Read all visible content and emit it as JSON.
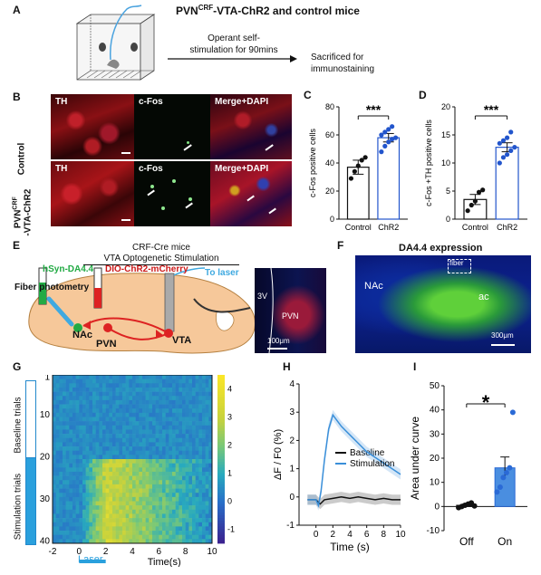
{
  "panelA": {
    "letter": "A",
    "title_main": "PVN",
    "title_sup": "CRF",
    "title_rest": "-VTA-ChR2  and control mice",
    "arrow_text_1": "Operant self-",
    "arrow_text_2": "stimulation for 90mins",
    "result_text_1": "Sacrificed for",
    "result_text_2": "immunostaining"
  },
  "panelB": {
    "letter": "B",
    "col_labels": [
      "TH",
      "c-Fos",
      "Merge+DAPI"
    ],
    "row1_label": "Control",
    "row2_label_main": "PVN",
    "row2_label_sup": "CRF",
    "row2_label_rest": "-VTA-ChR2"
  },
  "panelC": {
    "letter": "C",
    "sig": "***",
    "chart_data": {
      "type": "bar",
      "categories": [
        "Control",
        "ChR2"
      ],
      "values": [
        37,
        58
      ],
      "errors": [
        5,
        3
      ],
      "points": [
        [
          29,
          34,
          38,
          42,
          44
        ],
        [
          48,
          52,
          55,
          57,
          58,
          60,
          62,
          64,
          66
        ]
      ],
      "ylabel": "c-Fos positive cells",
      "ylim": [
        0,
        80
      ],
      "yticks": [
        0,
        20,
        40,
        60,
        80
      ],
      "colors": [
        "#111111",
        "#2255cc"
      ]
    }
  },
  "panelD": {
    "letter": "D",
    "sig": "***",
    "chart_data": {
      "type": "bar",
      "categories": [
        "Control",
        "ChR2"
      ],
      "values": [
        3.5,
        12.8
      ],
      "errors": [
        0.9,
        0.8
      ],
      "points": [
        [
          1.5,
          2.5,
          3.2,
          4.8,
          5.2
        ],
        [
          10,
          11,
          11.5,
          12.2,
          12.8,
          13.5,
          14,
          14.5,
          15.5
        ]
      ],
      "ylabel": "c-Fos +TH positive cells",
      "ylim": [
        0,
        20
      ],
      "yticks": [
        0,
        5,
        10,
        15,
        20
      ],
      "colors": [
        "#111111",
        "#2255cc"
      ]
    }
  },
  "panelE": {
    "letter": "E",
    "title_1": "CRF-Cre mice",
    "title_2": "VTA Optogenetic Stimulation",
    "hsyn": "hSyn-DA4.4",
    "dio": "DIO-ChR2-mCherry",
    "fiber": "Fiber photometry",
    "laser": "To laser",
    "nac": "NAc",
    "pvn": "PVN",
    "vta": "VTA",
    "inset_3v": "3V",
    "inset_pvn": "PVN",
    "inset_scale": "100μm"
  },
  "panelF": {
    "letter": "F",
    "title": "DA4.4 expression",
    "fiber": "fiber",
    "nac": "NAc",
    "ac": "ac",
    "scale": "300μm"
  },
  "panelG": {
    "letter": "G",
    "baseline_label": "Baseline trials",
    "stim_label": "Stimulation trials",
    "laser_label": "Laser",
    "x_label": "Time(s)",
    "x_ticks": [
      "-2",
      "0",
      "2",
      "4",
      "6",
      "8",
      "10"
    ],
    "y_ticks": [
      "1",
      "10",
      "20",
      "30",
      "40"
    ],
    "cbar_ticks": [
      "4",
      "3",
      "2",
      "1",
      "0",
      "-1"
    ]
  },
  "panelH": {
    "letter": "H",
    "chart_data": {
      "type": "line",
      "xlabel": "Time (s)",
      "ylabel": "ΔF / F0 (%)",
      "xlim": [
        -2,
        10
      ],
      "ylim": [
        -1,
        4
      ],
      "xticks": [
        0,
        2,
        4,
        6,
        8,
        10
      ],
      "yticks": [
        -1,
        0,
        1,
        2,
        3,
        4
      ],
      "series": [
        {
          "name": "Baseline",
          "color": "#111111",
          "x": [
            -1,
            0,
            0.5,
            1,
            2,
            3,
            4,
            5,
            6,
            7,
            8,
            9,
            10
          ],
          "y": [
            -0.1,
            -0.1,
            -0.25,
            -0.1,
            -0.05,
            0,
            -0.05,
            0,
            -0.05,
            -0.1,
            -0.05,
            -0.1,
            -0.1
          ]
        },
        {
          "name": "Stimulation",
          "color": "#3a8fd9",
          "x": [
            -1,
            0,
            0.3,
            0.6,
            1,
            1.5,
            2,
            2.5,
            3,
            4,
            5,
            6,
            7,
            8,
            9,
            10
          ],
          "y": [
            -0.1,
            -0.1,
            -0.3,
            0.2,
            1.3,
            2.4,
            2.9,
            2.7,
            2.5,
            2.2,
            1.9,
            1.6,
            1.4,
            1.2,
            1.0,
            0.8
          ]
        }
      ]
    }
  },
  "panelI": {
    "letter": "I",
    "sig": "*",
    "chart_data": {
      "type": "bar",
      "categories": [
        "Off",
        "On"
      ],
      "values": [
        0.5,
        16
      ],
      "errors": [
        0.5,
        4.5
      ],
      "points": [
        [
          -0.5,
          0,
          0.5,
          1,
          1.5,
          0.2
        ],
        [
          6,
          8,
          12,
          14,
          16,
          39
        ]
      ],
      "ylabel": "Area under curve",
      "ylim": [
        -10,
        50
      ],
      "yticks": [
        -10,
        0,
        10,
        20,
        30,
        40,
        50
      ],
      "colors": [
        "#111111",
        "#2a6ad6"
      ]
    }
  }
}
